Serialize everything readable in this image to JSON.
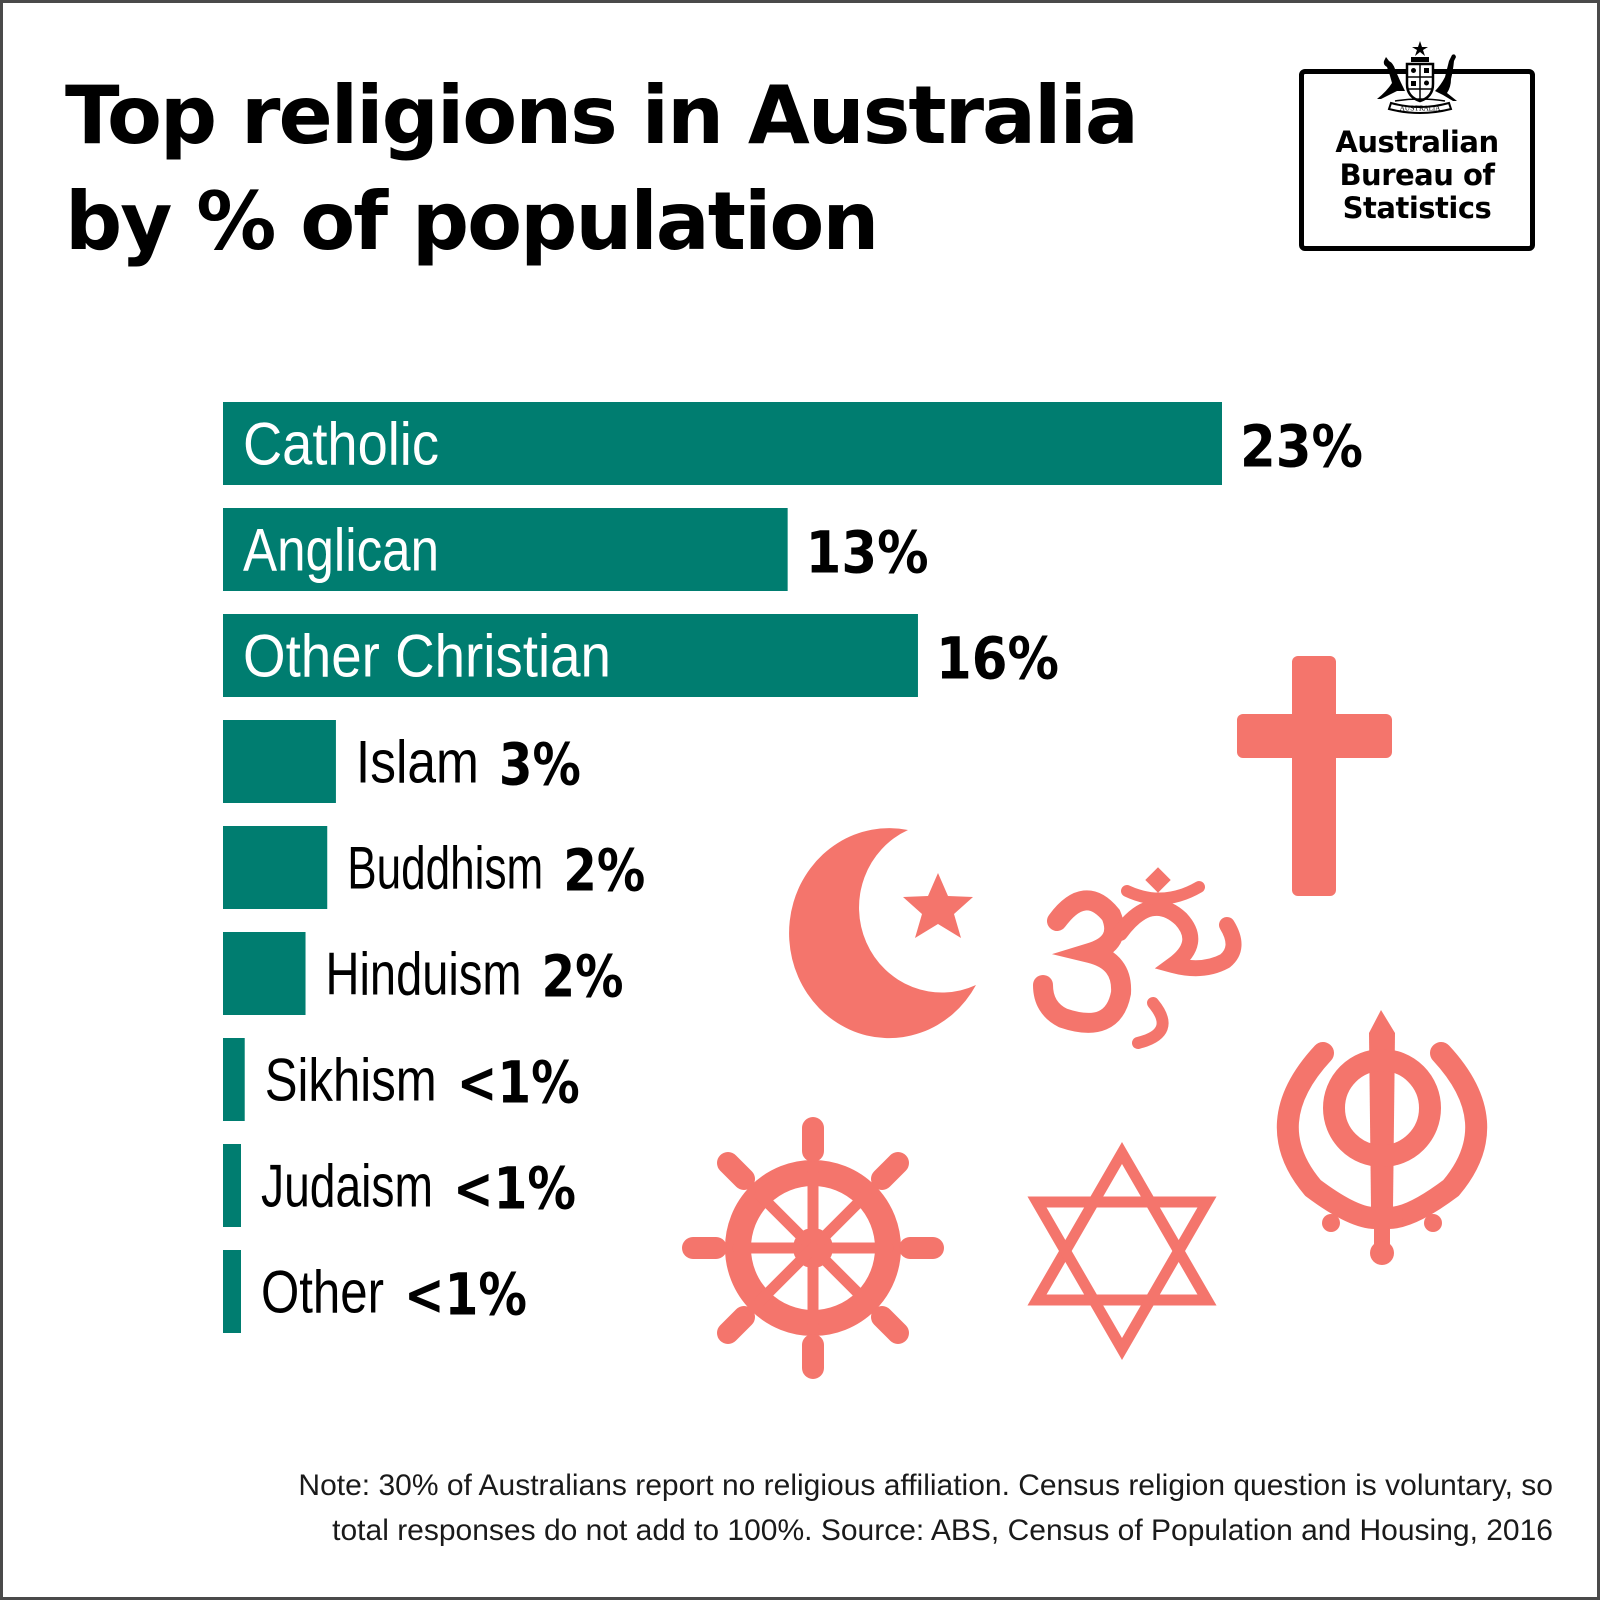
{
  "title": "Top religions in Australia by % of population",
  "logo": {
    "crest_label": "AUSTRALIA",
    "lines": [
      "Australian",
      "Bureau of",
      "Statistics"
    ]
  },
  "colors": {
    "bar": "#007D70",
    "symbol": "#F4756C",
    "text": "#000000"
  },
  "chart_data": {
    "type": "bar",
    "orientation": "horizontal",
    "unit": "%",
    "categories": [
      "Catholic",
      "Anglican",
      "Other Christian",
      "Islam",
      "Buddhism",
      "Hinduism",
      "Sikhism",
      "Judaism",
      "Other"
    ],
    "values": [
      23,
      13,
      16,
      2.6,
      2.4,
      1.9,
      0.5,
      0.4,
      0.4
    ],
    "value_labels": [
      "23%",
      "13%",
      "16%",
      "3%",
      "2%",
      "2%",
      "<1%",
      "<1%",
      "<1%"
    ],
    "label_position": [
      "inside",
      "inside",
      "inside",
      "outside",
      "outside",
      "outside",
      "outside",
      "outside",
      "outside"
    ],
    "xlim": [
      0,
      23
    ],
    "grid": false,
    "legend": "none"
  },
  "symbols": [
    "cross-icon",
    "crescent-star-icon",
    "om-icon",
    "khanda-icon",
    "dharma-wheel-icon",
    "star-of-david-icon"
  ],
  "note": {
    "line1": "Note: 30% of Australians report no religious affiliation. Census religion question is voluntary, so",
    "line2": "total responses do not add to 100%. Source: ABS, Census of Population and Housing, 2016"
  }
}
